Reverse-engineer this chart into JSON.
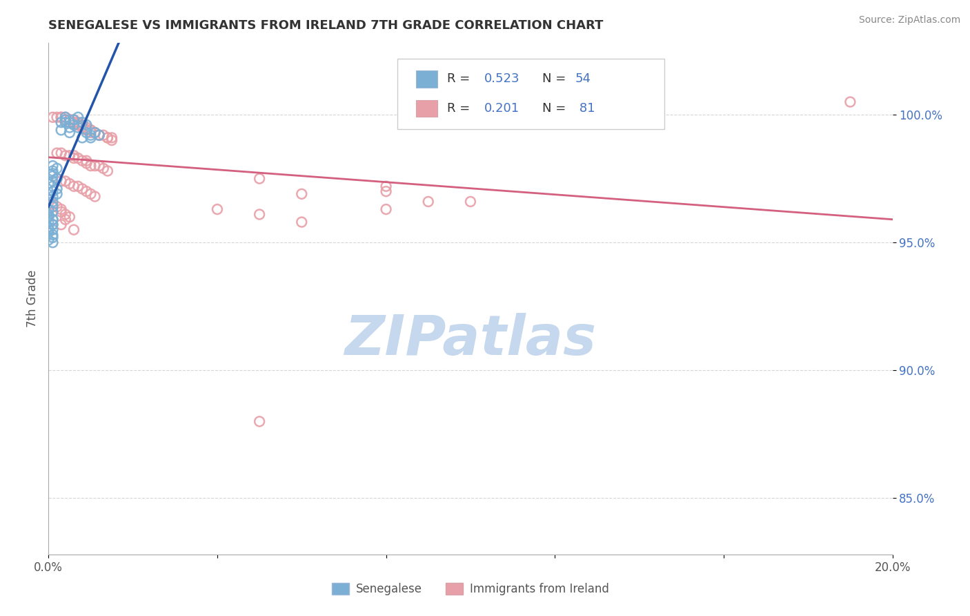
{
  "title": "SENEGALESE VS IMMIGRANTS FROM IRELAND 7TH GRADE CORRELATION CHART",
  "source_text": "Source: ZipAtlas.com",
  "ylabel": "7th Grade",
  "xlim": [
    0.0,
    0.2
  ],
  "ylim": [
    0.828,
    1.028
  ],
  "xtick_vals": [
    0.0,
    0.04,
    0.08,
    0.12,
    0.16,
    0.2
  ],
  "xticklabels": [
    "0.0%",
    "",
    "",
    "",
    "",
    "20.0%"
  ],
  "ytick_vals": [
    0.85,
    0.9,
    0.95,
    1.0
  ],
  "yticklabels": [
    "85.0%",
    "90.0%",
    "95.0%",
    "100.0%"
  ],
  "blue_color": "#7bafd4",
  "pink_color": "#e8a0a8",
  "blue_line_color": "#2255aa",
  "pink_line_color": "#d46080",
  "ytick_color": "#4472c4",
  "watermark": "ZIPatlas",
  "watermark_color": "#c5d8ee",
  "background_color": "#ffffff",
  "legend_label_blue": "Senegalese",
  "legend_label_pink": "Immigrants from Ireland",
  "blue_x": [
    0.004,
    0.007,
    0.004,
    0.006,
    0.003,
    0.005,
    0.008,
    0.004,
    0.006,
    0.009,
    0.005,
    0.007,
    0.003,
    0.005,
    0.009,
    0.011,
    0.01,
    0.012,
    0.008,
    0.01,
    0.001,
    0.002,
    0.001,
    0.001,
    0.001,
    0.002,
    0.001,
    0.0,
    0.001,
    0.002,
    0.001,
    0.002,
    0.001,
    0.0,
    0.001,
    0.001,
    0.0,
    0.001,
    0.0,
    0.0,
    0.001,
    0.0,
    0.001,
    0.001,
    0.0,
    0.001,
    0.001,
    0.0,
    0.001,
    0.0,
    0.001,
    0.001,
    0.0,
    0.0
  ],
  "blue_y": [
    0.999,
    0.999,
    0.998,
    0.998,
    0.997,
    0.997,
    0.997,
    0.997,
    0.996,
    0.996,
    0.995,
    0.995,
    0.994,
    0.993,
    0.993,
    0.993,
    0.992,
    0.992,
    0.991,
    0.991,
    0.98,
    0.979,
    0.978,
    0.977,
    0.976,
    0.975,
    0.974,
    0.973,
    0.972,
    0.971,
    0.97,
    0.969,
    0.968,
    0.967,
    0.966,
    0.964,
    0.963,
    0.962,
    0.961,
    0.96,
    0.959,
    0.958,
    0.957,
    0.955,
    0.954,
    0.953,
    0.952,
    0.951,
    0.95,
    0.96,
    0.959,
    0.957,
    0.956,
    0.955
  ],
  "pink_x": [
    0.001,
    0.002,
    0.003,
    0.003,
    0.004,
    0.004,
    0.005,
    0.005,
    0.005,
    0.006,
    0.006,
    0.006,
    0.007,
    0.007,
    0.007,
    0.007,
    0.008,
    0.008,
    0.008,
    0.008,
    0.009,
    0.009,
    0.009,
    0.01,
    0.01,
    0.01,
    0.011,
    0.011,
    0.012,
    0.012,
    0.013,
    0.014,
    0.014,
    0.015,
    0.015,
    0.002,
    0.003,
    0.004,
    0.005,
    0.006,
    0.006,
    0.007,
    0.008,
    0.009,
    0.009,
    0.01,
    0.011,
    0.012,
    0.013,
    0.014,
    0.002,
    0.003,
    0.004,
    0.005,
    0.006,
    0.007,
    0.008,
    0.009,
    0.01,
    0.011,
    0.001,
    0.002,
    0.003,
    0.003,
    0.004,
    0.005,
    0.004,
    0.003,
    0.006,
    0.08,
    0.09,
    0.04,
    0.05,
    0.06,
    0.05,
    0.08,
    0.06,
    0.19,
    0.1,
    0.08,
    0.05
  ],
  "pink_y": [
    0.999,
    0.999,
    0.999,
    0.999,
    0.999,
    0.998,
    0.998,
    0.998,
    0.998,
    0.998,
    0.997,
    0.997,
    0.997,
    0.997,
    0.996,
    0.996,
    0.996,
    0.996,
    0.995,
    0.995,
    0.995,
    0.994,
    0.994,
    0.994,
    0.994,
    0.993,
    0.993,
    0.993,
    0.992,
    0.992,
    0.992,
    0.991,
    0.991,
    0.991,
    0.99,
    0.985,
    0.985,
    0.984,
    0.984,
    0.984,
    0.983,
    0.983,
    0.982,
    0.982,
    0.981,
    0.98,
    0.98,
    0.98,
    0.979,
    0.978,
    0.975,
    0.974,
    0.974,
    0.973,
    0.972,
    0.972,
    0.971,
    0.97,
    0.969,
    0.968,
    0.965,
    0.964,
    0.963,
    0.962,
    0.961,
    0.96,
    0.959,
    0.957,
    0.955,
    0.97,
    0.966,
    0.963,
    0.961,
    0.958,
    0.975,
    0.972,
    0.969,
    1.005,
    0.966,
    0.963,
    0.88
  ]
}
